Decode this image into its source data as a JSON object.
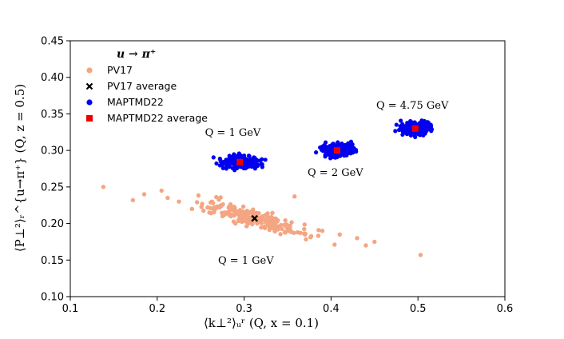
{
  "chart_data": {
    "type": "scatter",
    "xlabel": "⟨k⊥²⟩ᵤʳ (Q, x = 0.1)",
    "ylabel": "⟨P⊥²⟩ᵣ^{u→π⁺} (Q, z = 0.5)",
    "xlim": [
      0.1,
      0.6
    ],
    "ylim": [
      0.1,
      0.45
    ],
    "x_ticks": [
      "0.1",
      "0.2",
      "0.3",
      "0.4",
      "0.5",
      "0.6"
    ],
    "y_ticks": [
      "0.10",
      "0.15",
      "0.20",
      "0.25",
      "0.30",
      "0.35",
      "0.40",
      "0.45"
    ],
    "grid": false,
    "legend": {
      "title": "u → π⁺",
      "placement": "top-left",
      "entries": [
        {
          "label": "PV17",
          "color": "#f4a582",
          "marker": "circle"
        },
        {
          "label": "PV17 average",
          "color": "#000000",
          "marker": "x"
        },
        {
          "label": "MAPTMD22",
          "color": "#0000ee",
          "marker": "circle"
        },
        {
          "label": "MAPTMD22 average",
          "color": "#ee0000",
          "marker": "square"
        }
      ]
    },
    "series": [
      {
        "name": "PV17",
        "color": "#f4a582",
        "spread": [
          0.041,
          0.0195
        ],
        "x": [
          0.138,
          0.172,
          0.185,
          0.205,
          0.212,
          0.225,
          0.24,
          0.26,
          0.275,
          0.29,
          0.3,
          0.315,
          0.33,
          0.35,
          0.358,
          0.37,
          0.39,
          0.41,
          0.43,
          0.44,
          0.45,
          0.503
        ],
        "y": [
          0.25,
          0.232,
          0.24,
          0.245,
          0.235,
          0.23,
          0.22,
          0.215,
          0.21,
          0.2,
          0.205,
          0.2,
          0.198,
          0.19,
          0.237,
          0.185,
          0.19,
          0.185,
          0.18,
          0.17,
          0.175,
          0.157
        ]
      },
      {
        "name": "MAPTMD22 (Q = 1 GeV)",
        "color": "#0000ee",
        "center": [
          0.295,
          0.284
        ],
        "spread": [
          0.024,
          0.0042
        ],
        "n": 240
      },
      {
        "name": "MAPTMD22 (Q = 2 GeV)",
        "color": "#0000ee",
        "center": [
          0.407,
          0.3
        ],
        "spread": [
          0.021,
          0.0042
        ],
        "n": 240
      },
      {
        "name": "MAPTMD22 (Q = 4.75 GeV)",
        "color": "#0000ee",
        "center": [
          0.497,
          0.33
        ],
        "spread": [
          0.018,
          0.0042
        ],
        "n": 220
      }
    ],
    "averages": [
      {
        "name": "PV17 average",
        "x": 0.312,
        "y": 0.207,
        "color": "#000000",
        "marker": "x"
      },
      {
        "name": "MAPTMD22 average",
        "x": 0.295,
        "y": 0.284,
        "color": "#ee0000",
        "marker": "square"
      },
      {
        "name": "MAPTMD22 average",
        "x": 0.407,
        "y": 0.3,
        "color": "#ee0000",
        "marker": "square"
      },
      {
        "name": "MAPTMD22 average",
        "x": 0.497,
        "y": 0.33,
        "color": "#ee0000",
        "marker": "square"
      }
    ],
    "annotations": [
      {
        "text": "Q = 1 GeV",
        "x": 0.255,
        "y": 0.32
      },
      {
        "text": "Q = 2 GeV",
        "x": 0.373,
        "y": 0.265
      },
      {
        "text": "Q = 4.75 GeV",
        "x": 0.452,
        "y": 0.357
      },
      {
        "text": "Q = 1 GeV",
        "x": 0.27,
        "y": 0.145
      }
    ]
  }
}
